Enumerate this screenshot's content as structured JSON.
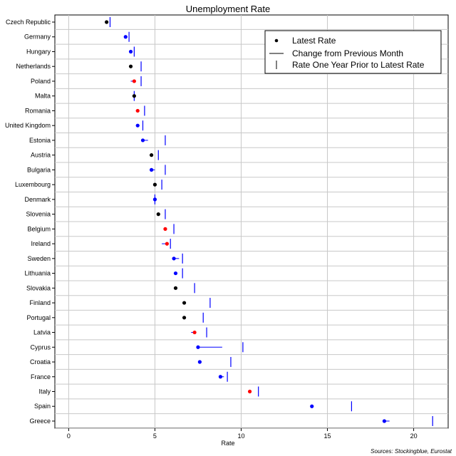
{
  "chart_data": {
    "type": "scatter",
    "title": "Unemployment Rate",
    "xlabel": "Rate",
    "ylabel": "",
    "xlim": [
      -0.8,
      22
    ],
    "x_ticks": [
      0,
      5,
      10,
      15,
      20
    ],
    "grid": true,
    "legend_position": "top-right",
    "legend": {
      "latest": "Latest Rate",
      "change": "Change from Previous Month",
      "prior": "Rate One Year Prior to Latest Rate"
    },
    "source": "Sources: Stockingblue, Eurostat",
    "colors": {
      "increase": "#ff0000",
      "decrease": "#0000ff",
      "unchanged": "#000000",
      "prior_marker": "#0000ff",
      "change_line": "#0000ff"
    },
    "countries": [
      {
        "name": "Czech Republic",
        "latest": 2.2,
        "previous": 2.2,
        "prior_year": 2.4
      },
      {
        "name": "Germany",
        "latest": 3.3,
        "previous": 3.4,
        "prior_year": 3.5
      },
      {
        "name": "Hungary",
        "latest": 3.6,
        "previous": 3.7,
        "prior_year": 3.8
      },
      {
        "name": "Netherlands",
        "latest": 3.6,
        "previous": 3.6,
        "prior_year": 4.2
      },
      {
        "name": "Poland",
        "latest": 3.8,
        "previous": 3.6,
        "prior_year": 4.2
      },
      {
        "name": "Malta",
        "latest": 3.8,
        "previous": 3.8,
        "prior_year": 3.8
      },
      {
        "name": "Romania",
        "latest": 4.0,
        "previous": 3.9,
        "prior_year": 4.4
      },
      {
        "name": "United Kingdom",
        "latest": 4.0,
        "previous": 4.1,
        "prior_year": 4.3
      },
      {
        "name": "Estonia",
        "latest": 4.3,
        "previous": 4.6,
        "prior_year": 5.6
      },
      {
        "name": "Austria",
        "latest": 4.8,
        "previous": 4.8,
        "prior_year": 5.2
      },
      {
        "name": "Bulgaria",
        "latest": 4.8,
        "previous": 5.0,
        "prior_year": 5.6
      },
      {
        "name": "Luxembourg",
        "latest": 5.0,
        "previous": 5.0,
        "prior_year": 5.4
      },
      {
        "name": "Denmark",
        "latest": 5.0,
        "previous": 5.1,
        "prior_year": 5.0
      },
      {
        "name": "Slovenia",
        "latest": 5.2,
        "previous": 5.2,
        "prior_year": 5.6
      },
      {
        "name": "Belgium",
        "latest": 5.6,
        "previous": 5.5,
        "prior_year": 6.1
      },
      {
        "name": "Ireland",
        "latest": 5.7,
        "previous": 5.4,
        "prior_year": 5.9
      },
      {
        "name": "Sweden",
        "latest": 6.1,
        "previous": 6.4,
        "prior_year": 6.6
      },
      {
        "name": "Lithuania",
        "latest": 6.2,
        "previous": 6.3,
        "prior_year": 6.6
      },
      {
        "name": "Slovakia",
        "latest": 6.2,
        "previous": 6.2,
        "prior_year": 7.3
      },
      {
        "name": "Finland",
        "latest": 6.7,
        "previous": 6.7,
        "prior_year": 8.2
      },
      {
        "name": "Portugal",
        "latest": 6.7,
        "previous": 6.7,
        "prior_year": 7.8
      },
      {
        "name": "Latvia",
        "latest": 7.3,
        "previous": 7.1,
        "prior_year": 8.0
      },
      {
        "name": "Cyprus",
        "latest": 7.5,
        "previous": 8.9,
        "prior_year": 10.1
      },
      {
        "name": "Croatia",
        "latest": 7.6,
        "previous": 7.7,
        "prior_year": 9.4
      },
      {
        "name": "France",
        "latest": 8.8,
        "previous": 9.0,
        "prior_year": 9.2
      },
      {
        "name": "Italy",
        "latest": 10.5,
        "previous": 10.4,
        "prior_year": 11.0
      },
      {
        "name": "Spain",
        "latest": 14.1,
        "previous": 14.2,
        "prior_year": 16.4
      },
      {
        "name": "Greece",
        "latest": 18.3,
        "previous": 18.6,
        "prior_year": 21.1
      }
    ]
  }
}
